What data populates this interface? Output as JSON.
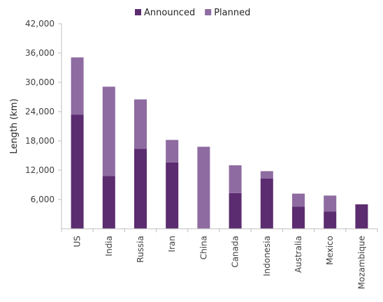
{
  "chart_data": {
    "type": "bar",
    "stacked": true,
    "categories": [
      "US",
      "India",
      "Russia",
      "Iran",
      "China",
      "Canada",
      "Indonesia",
      "Australia",
      "Mexico",
      "Mozambique"
    ],
    "series": [
      {
        "name": "Announced",
        "color": "#5b2c6f",
        "values": [
          23400,
          10800,
          16400,
          13600,
          0,
          7300,
          10300,
          4500,
          3500,
          5000
        ]
      },
      {
        "name": "Planned",
        "color": "#8e6ba1",
        "values": [
          11700,
          18300,
          10100,
          4600,
          16800,
          5700,
          1500,
          2700,
          3300,
          0
        ]
      }
    ],
    "ylabel": "Length (km)",
    "xlabel": "",
    "ylim": [
      0,
      42000
    ],
    "yticks": [
      6000,
      12000,
      18000,
      24000,
      30000,
      36000,
      42000
    ],
    "ytick_labels": [
      "6,000",
      "12,000",
      "18,000",
      "24,000",
      "30,000",
      "36,000",
      "42,000"
    ],
    "grid": false,
    "legend": {
      "position": "top-center",
      "entries": [
        "Announced",
        "Planned"
      ]
    }
  }
}
